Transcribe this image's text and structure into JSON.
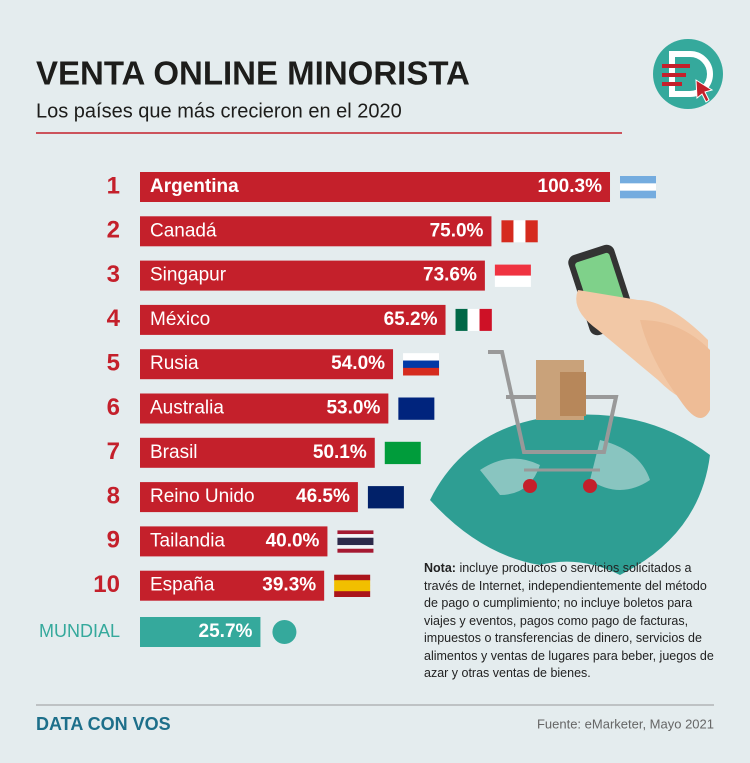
{
  "chart_data": {
    "type": "bar",
    "title": "VENTA ONLINE MINORISTA",
    "subtitle": "Los países que más crecieron en el 2020",
    "ranks": [
      "1",
      "2",
      "3",
      "4",
      "5",
      "6",
      "7",
      "8",
      "9",
      "10"
    ],
    "categories": [
      "Argentina",
      "Canadá",
      "Singapur",
      "México",
      "Rusia",
      "Australia",
      "Brasil",
      "Reino Unido",
      "Tailandia",
      "España"
    ],
    "values": [
      100.3,
      75.0,
      73.6,
      65.2,
      54.0,
      53.0,
      50.1,
      46.5,
      40.0,
      39.3
    ],
    "value_labels": [
      "100.3%",
      "75.0%",
      "73.6%",
      "65.2%",
      "54.0%",
      "53.0%",
      "50.1%",
      "46.5%",
      "40.0%",
      "39.3%"
    ],
    "color": "#c4202b",
    "total": {
      "label": "MUNDIAL",
      "value": 25.7,
      "value_label": "25.7%",
      "color": "#35a99c"
    }
  },
  "note": {
    "label": "Nota:",
    "text": "incluye productos o servicios solicitados a través de Internet, independientemente del método de pago o cumplimiento; no incluye boletos para viajes y eventos, pagos como pago de facturas, impuestos o transferencias de dinero, servicios de alimentos y ventas de lugares para beber, juegos de azar y otras ventas de bienes."
  },
  "footer": {
    "logo": "DATA CON VOS",
    "source": "Fuente: eMarketer, Mayo 2021"
  }
}
